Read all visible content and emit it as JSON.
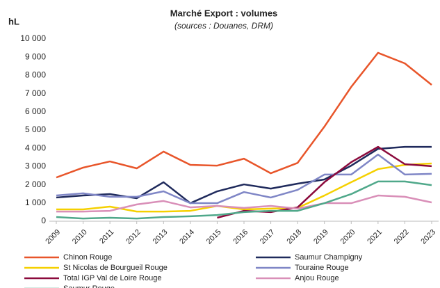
{
  "chart_data": {
    "type": "line",
    "title": "Marché Export : volumes",
    "subtitle": "(sources : Douanes, DRM)",
    "y_label": "hL",
    "categories": [
      "2009",
      "2010",
      "2011",
      "2012",
      "2013",
      "2014",
      "2015",
      "2016",
      "2017",
      "2018",
      "2019",
      "2020",
      "2021",
      "2022",
      "2023"
    ],
    "ylim": [
      0,
      10000
    ],
    "yticks": [
      0,
      {
        "value": 1000,
        "label": "1 000"
      },
      {
        "value": 2000,
        "label": "2 000"
      },
      {
        "value": 3000,
        "label": "3 000"
      },
      {
        "value": 4000,
        "label": "4 000"
      },
      {
        "value": 5000,
        "label": "5 000"
      },
      {
        "value": 6000,
        "label": "6 000"
      },
      {
        "value": 7000,
        "label": "7 000"
      },
      {
        "value": 8000,
        "label": "8 000"
      },
      {
        "value": 9000,
        "label": "9 000"
      },
      {
        "value": 10000,
        "label": "10 000"
      }
    ],
    "grid": false,
    "legend": "bottom",
    "series": [
      {
        "name": "Chinon Rouge",
        "color": "#e8552a",
        "values": [
          2400,
          2940,
          3280,
          2900,
          3820,
          3090,
          3050,
          3430,
          2630,
          3200,
          5190,
          7370,
          9240,
          8660,
          7480
        ]
      },
      {
        "name": "Saumur Champigny",
        "color": "#1f2a5c",
        "values": [
          1300,
          1410,
          1490,
          1260,
          2140,
          990,
          1640,
          2020,
          1790,
          2060,
          2290,
          3050,
          3970,
          4080,
          4080
        ]
      },
      {
        "name": "St Nicolas de Bourgueil Rouge",
        "color": "#f5d000",
        "values": [
          650,
          650,
          800,
          530,
          530,
          570,
          840,
          650,
          690,
          730,
          1410,
          2140,
          2860,
          3090,
          3170
        ]
      },
      {
        "name": "Touraine Rouge",
        "color": "#7f86c6",
        "values": [
          1410,
          1530,
          1340,
          1340,
          1640,
          990,
          990,
          1600,
          1300,
          1720,
          2560,
          2560,
          3660,
          2560,
          2600
        ]
      },
      {
        "name": "Total IGP Val de Loire Rouge",
        "color": "#8b0a3c",
        "values": [
          null,
          null,
          null,
          null,
          null,
          null,
          190,
          570,
          500,
          760,
          2140,
          3240,
          4080,
          3130,
          3020
        ]
      },
      {
        "name": "Anjou Rouge",
        "color": "#d98fb8",
        "values": [
          530,
          530,
          570,
          920,
          1110,
          760,
          840,
          730,
          840,
          690,
          990,
          990,
          1410,
          1340,
          1030
        ]
      },
      {
        "name": "Saumur Rouge",
        "color": "#4fa88a",
        "values": [
          230,
          150,
          190,
          150,
          230,
          270,
          340,
          500,
          570,
          570,
          990,
          1490,
          2180,
          2180,
          1980
        ]
      }
    ]
  }
}
